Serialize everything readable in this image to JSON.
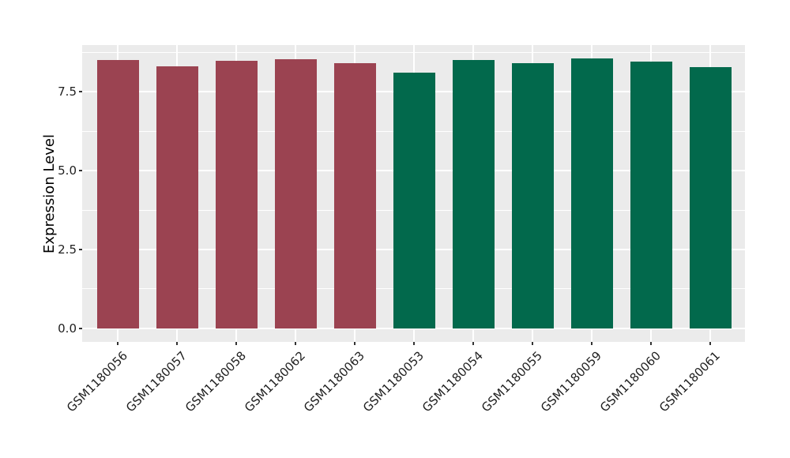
{
  "chart_data": {
    "type": "bar",
    "title": "",
    "xlabel": "",
    "ylabel": "Expression Level",
    "categories": [
      "GSM1180056",
      "GSM1180057",
      "GSM1180058",
      "GSM1180062",
      "GSM1180063",
      "GSM1180053",
      "GSM1180054",
      "GSM1180055",
      "GSM1180059",
      "GSM1180060",
      "GSM1180061"
    ],
    "values": [
      8.51,
      8.3,
      8.49,
      8.54,
      8.4,
      8.11,
      8.5,
      8.4,
      8.55,
      8.45,
      8.28
    ],
    "bar_colors": [
      "#9B4351",
      "#9B4351",
      "#9B4351",
      "#9B4351",
      "#9B4351",
      "#02694C",
      "#02694C",
      "#02694C",
      "#02694C",
      "#02694C",
      "#02694C"
    ],
    "group_palette": {
      "left_group_color": "#9B4351",
      "right_group_color": "#02694C"
    },
    "yticks": [
      0,
      2.5,
      5,
      7.5
    ],
    "ytick_labels": [
      "0.0",
      "2.5",
      "5.0",
      "7.5"
    ],
    "yminor": [
      1.25,
      3.75,
      6.25,
      8.75
    ],
    "ylim": [
      -0.43,
      8.98
    ],
    "grid": true,
    "legend": false,
    "panel_bg": "#EBEBEB",
    "grid_color": "#FFFFFF",
    "axis_text_color": "#1F1F1F",
    "tick_color": "#333333"
  }
}
